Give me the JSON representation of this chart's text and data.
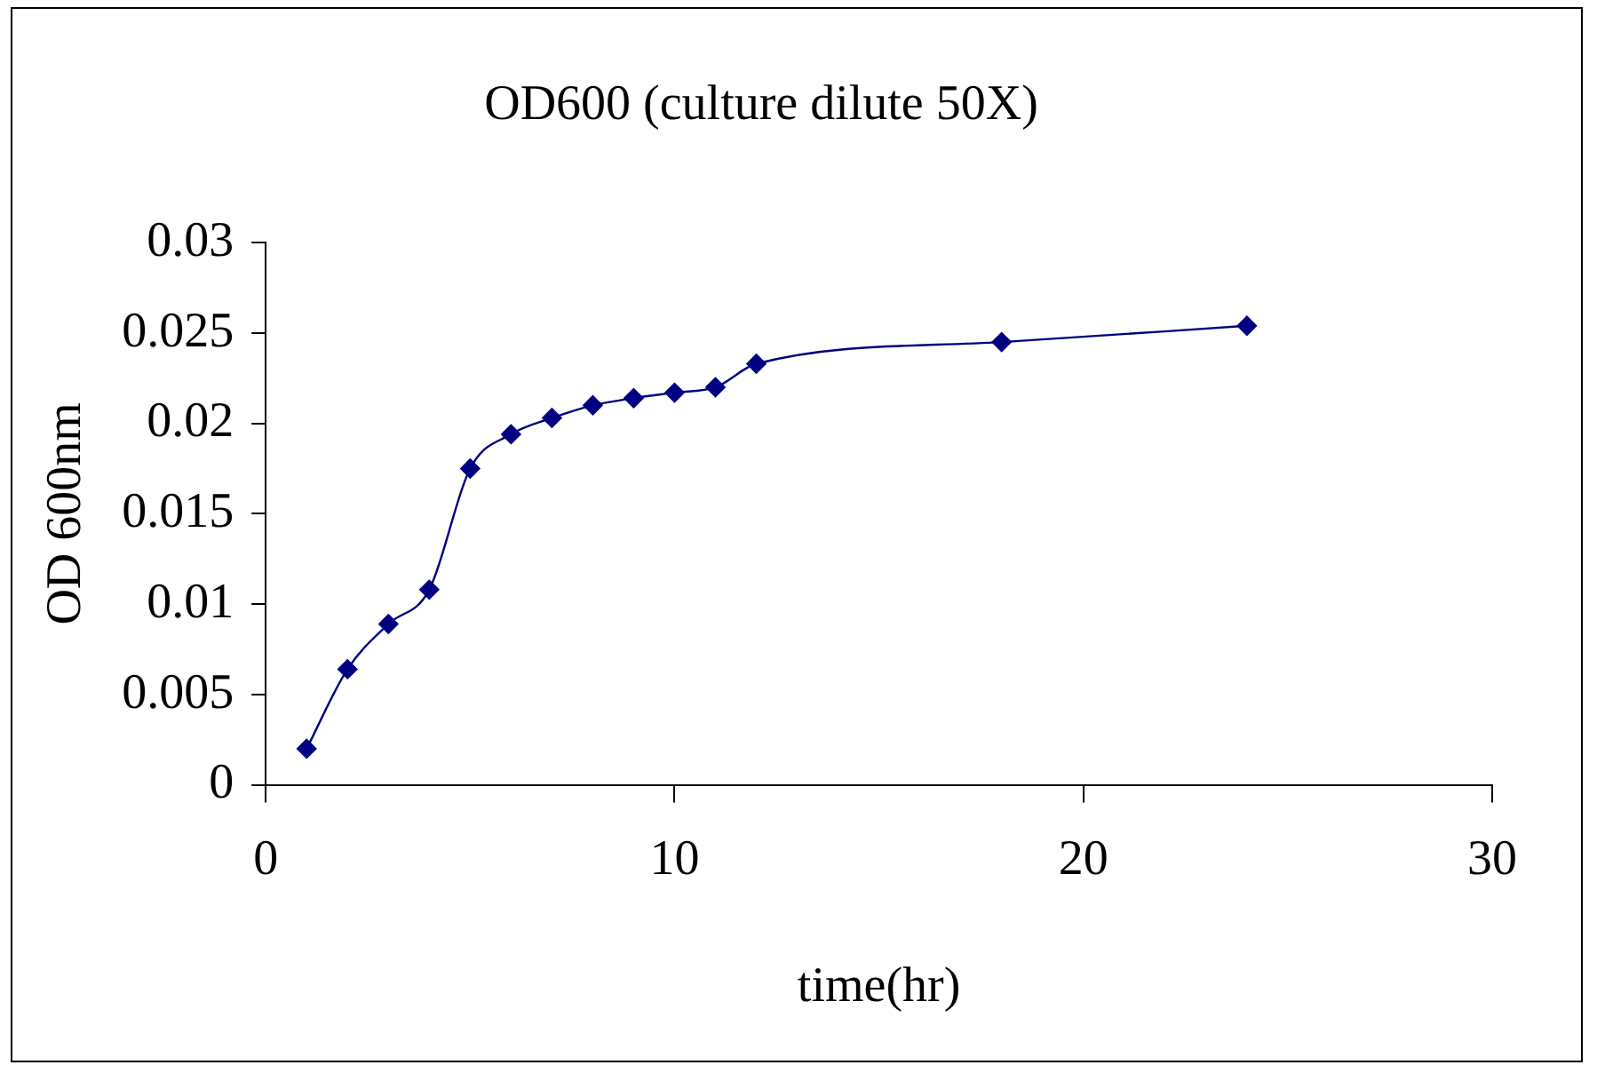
{
  "chart_data": {
    "type": "line",
    "title": "OD600 (culture dilute 50X)",
    "xlabel": "time(hr)",
    "ylabel": "OD 600nm",
    "x": [
      1,
      2,
      3,
      4,
      5,
      6,
      7,
      8,
      9,
      10,
      11,
      12,
      18,
      24
    ],
    "series": [
      {
        "color": "#000080",
        "values": [
          0.002,
          0.0064,
          0.0089,
          0.0108,
          0.0175,
          0.0194,
          0.0203,
          0.021,
          0.0214,
          0.0217,
          0.022,
          0.0233,
          0.0245,
          0.0254
        ]
      }
    ],
    "xlim": [
      0,
      30
    ],
    "xticks": [
      0,
      10,
      20,
      30
    ],
    "ylim": [
      0,
      0.03
    ],
    "yticks": [
      0,
      0.005,
      0.01,
      0.015,
      0.02,
      0.025,
      0.03
    ],
    "grid": false,
    "legend": false,
    "marker": "diamond",
    "line_style": "solid"
  }
}
